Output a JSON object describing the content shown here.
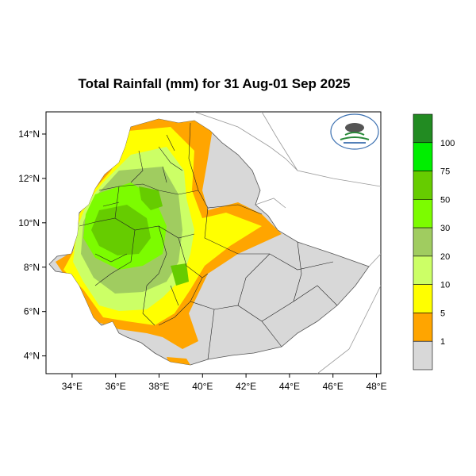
{
  "title": "Total Rainfall (mm) for 31 Aug-01 Sep 2025",
  "map": {
    "lon_ticks": [
      "34°E",
      "36°E",
      "38°E",
      "40°E",
      "42°E",
      "44°E",
      "46°E",
      "48°E"
    ],
    "lat_ticks": [
      "14°N",
      "12°N",
      "10°N",
      "8°N",
      "6°N",
      "4°N"
    ],
    "lon_range": [
      32.8,
      48.2
    ],
    "lat_range": [
      3.2,
      15.0
    ]
  },
  "legend": {
    "breaks": [
      "1",
      "5",
      "10",
      "20",
      "30",
      "50",
      "75",
      "100"
    ],
    "colors": [
      "#d8d8d8",
      "#ffa500",
      "#ffff00",
      "#ccff66",
      "#a0cc60",
      "#7cfc00",
      "#66cc00",
      "#00ee00",
      "#228b22"
    ]
  },
  "logo": {
    "icon": "agency-logo-icon"
  }
}
